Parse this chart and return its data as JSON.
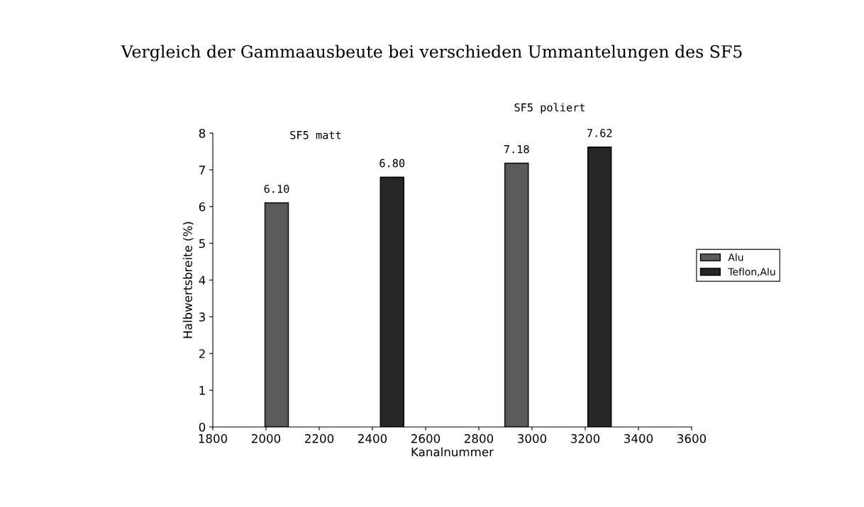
{
  "chart_data": {
    "type": "bar",
    "title": "Vergleich der Gammaausbeute bei verschieden Ummantelungen des SF5",
    "xlabel": "Kanalnummer",
    "ylabel": "Halbwertsbreite (%)",
    "series": [
      {
        "name": "Alu",
        "color": "#5a5a5a",
        "x": [
          2040,
          2942
        ],
        "values": [
          6.1,
          7.18
        ],
        "value_labels": [
          "6.10",
          "7.18"
        ]
      },
      {
        "name": "Teflon,Alu",
        "color": "#262626",
        "x": [
          2474,
          3254
        ],
        "values": [
          6.8,
          7.62
        ],
        "value_labels": [
          "6.80",
          "7.62"
        ]
      }
    ],
    "xlim": [
      1800,
      3600
    ],
    "xticks": [
      1800,
      2000,
      2200,
      2400,
      2600,
      2800,
      3000,
      3200,
      3400,
      3600
    ],
    "ylim": [
      0,
      8
    ],
    "yticks": [
      0,
      1,
      2,
      3,
      4,
      5,
      6,
      7,
      8
    ],
    "annotations": [
      "SF5 matt",
      "SF5 poliert"
    ],
    "grid": false,
    "legend": "right"
  }
}
